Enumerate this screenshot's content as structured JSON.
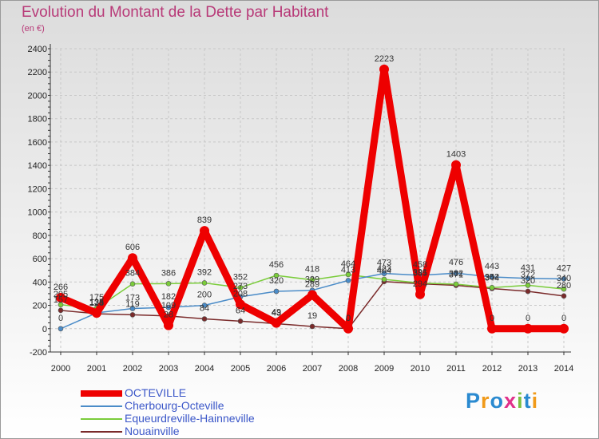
{
  "title": "Evolution du Montant de la Dette par Habitant",
  "subtitle": "(en €)",
  "brand": "Proxiti",
  "chart_data": {
    "type": "line",
    "x": [
      "2000",
      "2001",
      "2002",
      "2003",
      "2004",
      "2005",
      "2006",
      "2007",
      "2008",
      "2009",
      "2010",
      "2011",
      "2012",
      "2013",
      "2014"
    ],
    "ylim": [
      -200,
      2400
    ],
    "yticks": [
      -200,
      0,
      200,
      400,
      600,
      800,
      1000,
      1200,
      1400,
      1600,
      1800,
      2000,
      2200,
      2400
    ],
    "grid": true,
    "legend_position": "bottom-left",
    "series": [
      {
        "name": "OCTEVILLE",
        "color": "#ee0000",
        "values": [
          266,
          134,
          606,
          28,
          839,
          208,
          49,
          289,
          0,
          2223,
          294,
          1403,
          0,
          0,
          0
        ],
        "labels": [
          "266",
          "134",
          "606",
          "28",
          "839",
          "208",
          "49",
          "289",
          "0",
          "2223",
          "294",
          "1403",
          "0",
          "0",
          "0"
        ]
      },
      {
        "name": "Cherbourg-Octeville",
        "color": "#4b8cc8",
        "values": [
          0,
          135,
          173,
          182,
          200,
          273,
          320,
          329,
          413,
          473,
          458,
          476,
          443,
          431,
          427
        ],
        "labels": [
          "0",
          "135",
          "173",
          "182",
          "200",
          "273",
          "320",
          "329",
          "413",
          "473",
          "458",
          "476",
          "443",
          "431",
          "427"
        ]
      },
      {
        "name": "Equeurdreville-Hainneville",
        "color": "#7acc3a",
        "values": [
          205,
          175,
          384,
          386,
          392,
          352,
          456,
          418,
          464,
          423,
          391,
          382,
          352,
          372,
          340
        ],
        "labels": [
          "205",
          "175",
          "384",
          "386",
          "392",
          "352",
          "456",
          "418",
          "464",
          "423",
          "391",
          "382",
          "352",
          "372",
          "340"
        ]
      },
      {
        "name": "Nouainville",
        "color": "#7a2a2a",
        "values": [
          157,
          128,
          119,
          109,
          84,
          64,
          43,
          19,
          0,
          404,
          385,
          371,
          344,
          320,
          280
        ],
        "labels": [
          "157",
          "128",
          "119",
          "109",
          "84",
          "64",
          "43",
          "19",
          "0",
          "404",
          "385",
          "371",
          "344",
          "320",
          "280"
        ]
      }
    ]
  }
}
